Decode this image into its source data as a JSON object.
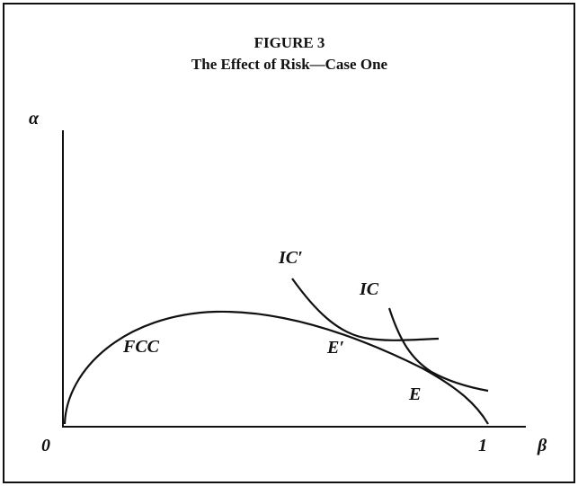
{
  "header": {
    "title": "FIGURE 3",
    "subtitle": "The Effect of Risk—Case One"
  },
  "axes": {
    "y_label": "α",
    "x_label": "β",
    "origin": "0",
    "x_end": "1"
  },
  "curves": [
    {
      "label": "FCC"
    },
    {
      "label": "IC′"
    },
    {
      "label": "IC"
    }
  ],
  "points": [
    {
      "label": "E′"
    },
    {
      "label": "E"
    }
  ]
}
